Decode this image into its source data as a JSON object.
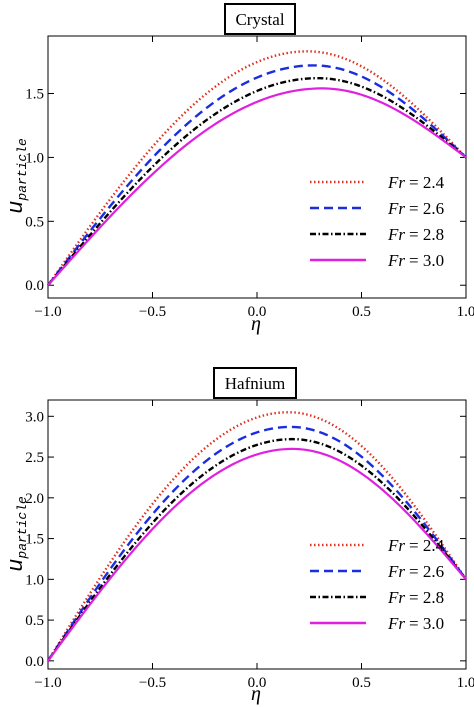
{
  "chart_data": [
    {
      "type": "line",
      "title": "Crystal",
      "xlabel": "η",
      "ylabel_main": "u",
      "ylabel_sub": "particle",
      "xlim": [
        -1.0,
        1.0
      ],
      "ylim": [
        -0.1,
        1.95
      ],
      "xticks": [
        "−1.0",
        "−0.5",
        "0.0",
        "0.5",
        "1.0"
      ],
      "xtick_values": [
        -1.0,
        -0.5,
        0.0,
        0.5,
        1.0
      ],
      "yticks": [
        "0.0",
        "0.5",
        "1.0",
        "1.5"
      ],
      "ytick_values": [
        0.0,
        0.5,
        1.0,
        1.5
      ],
      "legend_position": "lower-right",
      "series": [
        {
          "label_var": "Fr",
          "label_value": "= 2.4",
          "color": "#e03020",
          "dash": "dotted",
          "peak_x": 0.24,
          "peak_y": 1.83,
          "left_slope": 1.0,
          "right_slope": 1.0
        },
        {
          "label_var": "Fr",
          "label_value": "= 2.6",
          "color": "#1a2ee0",
          "dash": "dashed",
          "peak_x": 0.27,
          "peak_y": 1.72,
          "left_slope": 1.0,
          "right_slope": 1.0
        },
        {
          "label_var": "Fr",
          "label_value": "= 2.8",
          "color": "#000000",
          "dash": "dashdot",
          "peak_x": 0.29,
          "peak_y": 1.62,
          "left_slope": 1.0,
          "right_slope": 1.0
        },
        {
          "label_var": "Fr",
          "label_value": "= 3.0",
          "color": "#e020e0",
          "dash": "solid",
          "peak_x": 0.31,
          "peak_y": 1.54,
          "left_slope": 1.0,
          "right_slope": 1.0
        }
      ]
    },
    {
      "type": "line",
      "title": "Hafnium",
      "xlabel": "η",
      "ylabel_main": "u",
      "ylabel_sub": "particle",
      "xlim": [
        -1.0,
        1.0
      ],
      "ylim": [
        -0.1,
        3.2
      ],
      "xticks": [
        "−1.0",
        "−0.5",
        "0.0",
        "0.5",
        "1.0"
      ],
      "xtick_values": [
        -1.0,
        -0.5,
        0.0,
        0.5,
        1.0
      ],
      "yticks": [
        "0.0",
        "0.5",
        "1.0",
        "1.5",
        "2.0",
        "2.5",
        "3.0"
      ],
      "ytick_values": [
        0.0,
        0.5,
        1.0,
        1.5,
        2.0,
        2.5,
        3.0
      ],
      "legend_position": "lower-right",
      "series": [
        {
          "label_var": "Fr",
          "label_value": "= 2.4",
          "color": "#e03020",
          "dash": "dotted",
          "peak_x": 0.15,
          "peak_y": 3.05,
          "left_slope": 1.0,
          "right_slope": 1.0
        },
        {
          "label_var": "Fr",
          "label_value": "= 2.6",
          "color": "#1a2ee0",
          "dash": "dashed",
          "peak_x": 0.16,
          "peak_y": 2.87,
          "left_slope": 1.0,
          "right_slope": 1.0
        },
        {
          "label_var": "Fr",
          "label_value": "= 2.8",
          "color": "#000000",
          "dash": "dashdot",
          "peak_x": 0.17,
          "peak_y": 2.72,
          "left_slope": 1.0,
          "right_slope": 1.0
        },
        {
          "label_var": "Fr",
          "label_value": "= 3.0",
          "color": "#e020e0",
          "dash": "solid",
          "peak_x": 0.17,
          "peak_y": 2.6,
          "left_slope": 1.0,
          "right_slope": 1.0
        }
      ]
    }
  ]
}
